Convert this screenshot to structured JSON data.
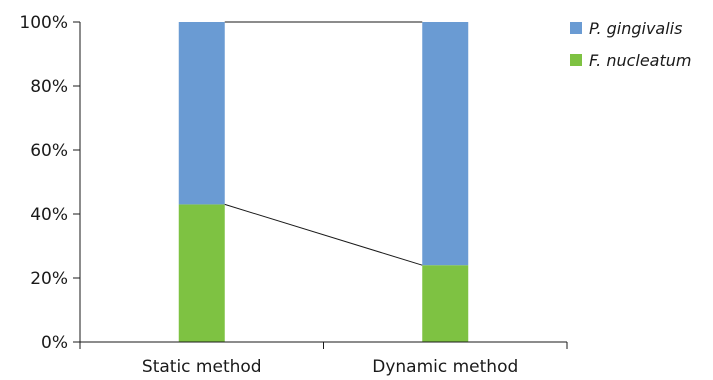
{
  "chart_data": {
    "type": "bar",
    "stacked": true,
    "percent": true,
    "categories": [
      "Static method",
      "Dynamic method"
    ],
    "series": [
      {
        "name": "F. nucleatum",
        "values": [
          43,
          24
        ],
        "color": "#7ec242"
      },
      {
        "name": "P. gingivalis",
        "values": [
          57,
          76
        ],
        "color": "#6a9bd3"
      }
    ],
    "yticks": [
      "0%",
      "20%",
      "40%",
      "60%",
      "80%",
      "100%"
    ],
    "ylim": [
      0,
      100
    ],
    "series_lines": true,
    "legend_position": "top-right",
    "legend": [
      "P. gingivalis",
      "F. nucleatum"
    ],
    "grid": false
  }
}
